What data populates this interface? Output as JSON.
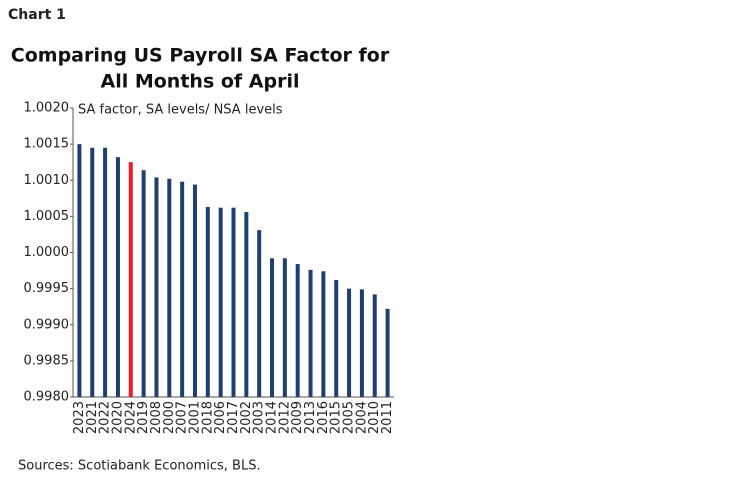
{
  "chart_label": "Chart 1",
  "chart_data": {
    "type": "bar",
    "title": [
      "Comparing US Payroll SA Factor for",
      "All Months of April"
    ],
    "annotation": "SA factor, SA levels/ NSA levels",
    "source": "Sources: Scotiabank Economics, BLS.",
    "categories": [
      "2023",
      "2021",
      "2022",
      "2020",
      "2024",
      "2019",
      "2008",
      "2000",
      "2007",
      "2001",
      "2018",
      "2006",
      "2017",
      "2002",
      "2003",
      "2014",
      "2012",
      "2009",
      "2013",
      "2016",
      "2015",
      "2005",
      "2004",
      "2010",
      "2011"
    ],
    "values": [
      1.0015,
      1.00145,
      1.00145,
      1.00132,
      1.00125,
      1.00114,
      1.00104,
      1.00102,
      1.00098,
      1.00094,
      1.00063,
      1.00062,
      1.00062,
      1.00056,
      1.00031,
      0.99992,
      0.99992,
      0.99984,
      0.99976,
      0.99974,
      0.99962,
      0.9995,
      0.99949,
      0.99942,
      0.99922
    ],
    "colors": [
      "#1f3f73",
      "#1f3f73",
      "#1f3f73",
      "#1f3f73",
      "#ec1c2b",
      "#1f3f73",
      "#1f3f73",
      "#1f3f73",
      "#1f3f73",
      "#1f3f73",
      "#1f3f73",
      "#1f3f73",
      "#1f3f73",
      "#1f3f73",
      "#1f3f73",
      "#1f3f73",
      "#1f3f73",
      "#1f3f73",
      "#1f3f73",
      "#1f3f73",
      "#1f3f73",
      "#1f3f73",
      "#1f3f73",
      "#1f3f73",
      "#1f3f73"
    ],
    "ylim": [
      0.998,
      1.002
    ],
    "yticks": [
      {
        "value": 0.998,
        "label": "0.9980"
      },
      {
        "value": 0.9985,
        "label": "0.9985"
      },
      {
        "value": 0.999,
        "label": "0.9990"
      },
      {
        "value": 0.9995,
        "label": "0.9995"
      },
      {
        "value": 1.0,
        "label": "1.0000"
      },
      {
        "value": 1.0005,
        "label": "1.0005"
      },
      {
        "value": 1.001,
        "label": "1.0010"
      },
      {
        "value": 1.0015,
        "label": "1.0015"
      },
      {
        "value": 1.002,
        "label": "1.0020"
      }
    ],
    "grid": false
  }
}
